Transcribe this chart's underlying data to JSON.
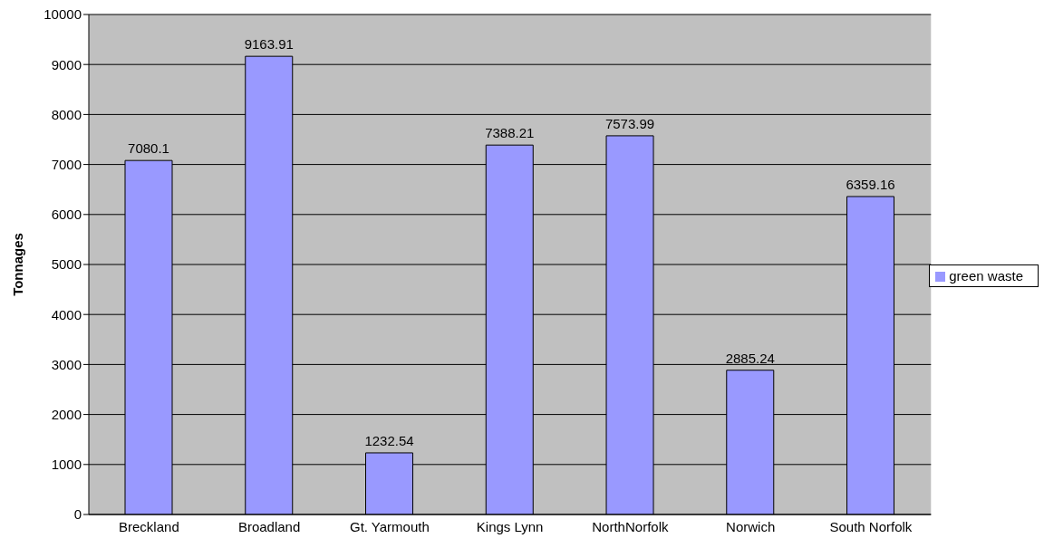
{
  "chart_data": {
    "type": "bar",
    "ylabel": "Tonnages",
    "categories": [
      "Breckland",
      "Broadland",
      "Gt. Yarmouth",
      "Kings Lynn",
      "NorthNorfolk",
      "Norwich",
      "South Norfolk"
    ],
    "series": [
      {
        "name": "green waste",
        "color": "#9999ff",
        "values": [
          7080.1,
          9163.91,
          1232.54,
          7388.21,
          7573.99,
          2885.24,
          6359.16
        ]
      }
    ],
    "ylim": [
      0,
      10000
    ],
    "yticks": [
      0,
      1000,
      2000,
      3000,
      4000,
      5000,
      6000,
      7000,
      8000,
      9000,
      10000
    ],
    "grid": "y",
    "legend": "right",
    "data_labels": true
  }
}
